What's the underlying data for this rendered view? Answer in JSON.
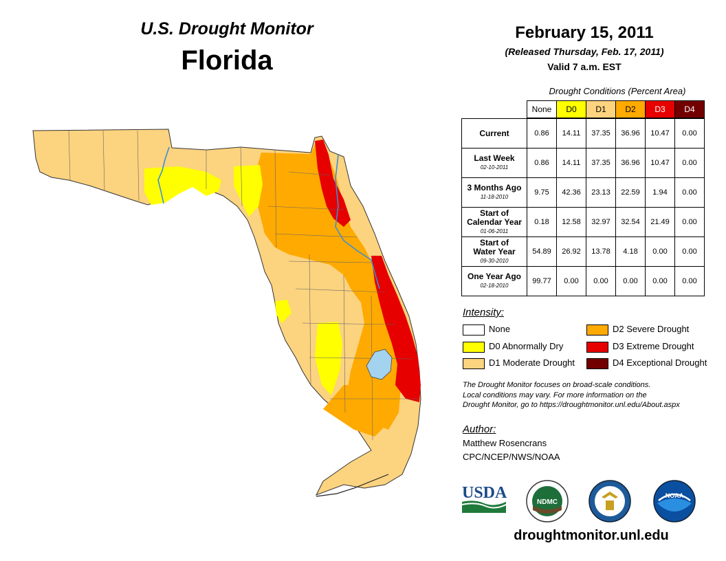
{
  "header": {
    "title": "U.S. Drought Monitor",
    "state": "Florida",
    "date": "February 15, 2011",
    "released": "(Released Thursday, Feb. 17, 2011)",
    "valid": "Valid 7 a.m. EST"
  },
  "table": {
    "caption": "Drought Conditions (Percent Area)",
    "columns": [
      "None",
      "D0",
      "D1",
      "D2",
      "D3",
      "D4"
    ],
    "rows": [
      {
        "label": "Current",
        "label2": "",
        "date": "",
        "values": [
          "0.86",
          "14.11",
          "37.35",
          "36.96",
          "10.47",
          "0.00"
        ]
      },
      {
        "label": "Last Week",
        "label2": "",
        "date": "02-10-2011",
        "values": [
          "0.86",
          "14.11",
          "37.35",
          "36.96",
          "10.47",
          "0.00"
        ]
      },
      {
        "label": "3 Months Ago",
        "label2": "",
        "date": "11-18-2010",
        "values": [
          "9.75",
          "42.36",
          "23.13",
          "22.59",
          "1.94",
          "0.00"
        ]
      },
      {
        "label": "Start of",
        "label2": "Calendar Year",
        "date": "01-06-2011",
        "values": [
          "0.18",
          "12.58",
          "32.97",
          "32.54",
          "21.49",
          "0.00"
        ]
      },
      {
        "label": "Start of",
        "label2": "Water Year",
        "date": "09-30-2010",
        "values": [
          "54.89",
          "26.92",
          "13.78",
          "4.18",
          "0.00",
          "0.00"
        ]
      },
      {
        "label": "One Year Ago",
        "label2": "",
        "date": "02-18-2010",
        "values": [
          "99.77",
          "0.00",
          "0.00",
          "0.00",
          "0.00",
          "0.00"
        ]
      }
    ]
  },
  "legend": {
    "title": "Intensity:",
    "items": [
      {
        "label": "None",
        "color": "#ffffff"
      },
      {
        "label": "D0 Abnormally Dry",
        "color": "#ffff00"
      },
      {
        "label": "D1 Moderate Drought",
        "color": "#fcd37f"
      },
      {
        "label": "D2 Severe Drought",
        "color": "#ffaa00"
      },
      {
        "label": "D3 Extreme Drought",
        "color": "#e60000"
      },
      {
        "label": "D4 Exceptional Drought",
        "color": "#730000"
      }
    ]
  },
  "note": {
    "line1": "The Drought Monitor focuses on broad-scale conditions.",
    "line2": "Local conditions may vary. For more information on the",
    "line3": "Drought Monitor, go to https://droughtmonitor.unl.edu/About.aspx"
  },
  "author": {
    "title": "Author:",
    "name": "Matthew Rosencrans",
    "org": "CPC/NCEP/NWS/NOAA"
  },
  "logos": {
    "usda": "USDA",
    "ndmc": "NDMC",
    "noaa": "NOAA"
  },
  "footer": {
    "url": "droughtmonitor.unl.edu"
  },
  "colors": {
    "none": "#ffffff",
    "d0": "#ffff00",
    "d1": "#fcd37f",
    "d2": "#ffaa00",
    "d3": "#e60000",
    "d4": "#730000",
    "water": "#a4d3f0",
    "river": "#3a8fd8"
  }
}
